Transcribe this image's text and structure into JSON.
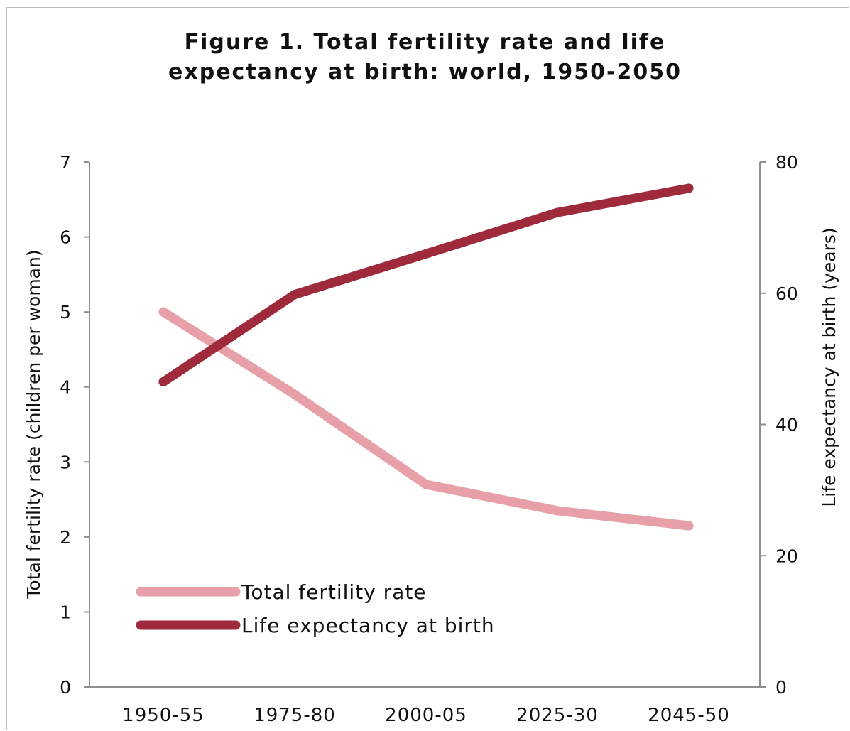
{
  "figure": {
    "title_line1": "Figure 1.  Total fertility rate and life",
    "title_line2": "expectancy at birth: world, 1950-2050"
  },
  "chart_data": {
    "type": "line",
    "title": "Figure 1.  Total fertility rate and life expectancy at birth: world, 1950-2050",
    "categories": [
      "1950-55",
      "1975-80",
      "2000-05",
      "2025-30",
      "2045-50"
    ],
    "xlabel": "",
    "ylabel_left": "Total fertility rate (children per woman)",
    "ylabel_right": "Life expectancy at birth (years)",
    "ylim_left": [
      0,
      7
    ],
    "ylim_right": [
      0,
      80
    ],
    "yticks_left": [
      "0",
      "1",
      "2",
      "3",
      "4",
      "5",
      "6",
      "7"
    ],
    "yticks_right": [
      "0",
      "20",
      "40",
      "60",
      "80"
    ],
    "grid": false,
    "legend_position": "bottom-left",
    "series": [
      {
        "name": "Total fertility rate",
        "axis": "left",
        "color": "#e8a0a8",
        "values": [
          5.0,
          3.9,
          2.7,
          2.35,
          2.15
        ]
      },
      {
        "name": "Life expectancy at birth",
        "axis": "right",
        "color": "#9e2a3c",
        "values": [
          46.5,
          59.8,
          66.0,
          72.3,
          76.0
        ]
      }
    ]
  }
}
